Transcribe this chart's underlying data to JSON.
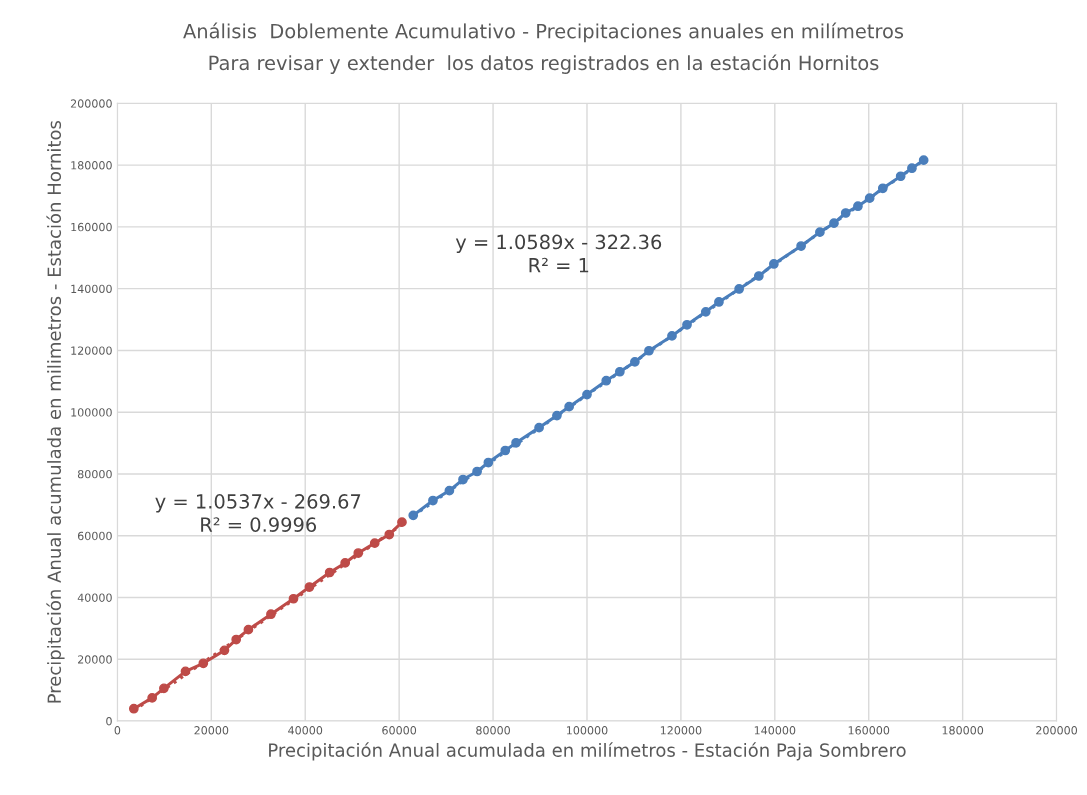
{
  "chart_data": {
    "type": "line",
    "title": "Análisis  Doblemente Acumulativo - Precipitaciones anuales en milímetros",
    "subtitle": "Para revisar y extender  los datos registrados en la estación Hornitos",
    "xlabel": "Precipitación Anual acumulada en milímetros - Estación Paja Sombrero",
    "ylabel": "Precipitación Anual acumulada en milimetros - Estación Hornitos",
    "xlim": [
      0,
      200000
    ],
    "ylim": [
      0,
      200000
    ],
    "xticks": [
      0,
      20000,
      40000,
      60000,
      80000,
      100000,
      120000,
      140000,
      160000,
      180000,
      200000
    ],
    "yticks": [
      0,
      20000,
      40000,
      60000,
      80000,
      100000,
      120000,
      140000,
      160000,
      180000,
      200000
    ],
    "grid": true,
    "legend": false,
    "marker": "circle",
    "line_style": "solid",
    "annotations": [
      "y = 1.0589x - 322.36\nR² = 1",
      "y = 1.0537x - 269.67\nR² = 0.9996"
    ],
    "series": [
      {
        "color": "#be4b48",
        "x": [
          3500,
          7400,
          9900,
          14500,
          18300,
          22800,
          25300,
          27900,
          32700,
          37500,
          40900,
          45200,
          48500,
          51300,
          54800,
          57900,
          60600
        ],
        "values": [
          4000,
          7500,
          10600,
          16100,
          18700,
          22900,
          26400,
          29600,
          34600,
          39600,
          43400,
          48100,
          51200,
          54400,
          57600,
          60400,
          64400
        ]
      },
      {
        "color": "#4a7ebb",
        "x": [
          63000,
          67200,
          70700,
          73600,
          76600,
          79000,
          82600,
          84900,
          89800,
          93600,
          96200,
          100000,
          104100,
          107000,
          110200,
          113200,
          118100,
          121300,
          125300,
          128100,
          132400,
          136600,
          139800,
          145600,
          149600,
          152600,
          155100,
          157700,
          160200,
          163000,
          166800,
          169200,
          171700
        ],
        "values": [
          66600,
          71400,
          74600,
          78200,
          80800,
          83700,
          87600,
          90100,
          95000,
          98900,
          101800,
          105700,
          110200,
          113100,
          116300,
          119900,
          124700,
          128300,
          132500,
          135700,
          139900,
          144100,
          148000,
          153800,
          158300,
          161200,
          164500,
          166700,
          169300,
          172500,
          176400,
          179000,
          181600
        ]
      },
      {
        "type": "line",
        "color": "#be4b48",
        "marker": "none",
        "line_style": "dotted",
        "x": [
          3500,
          60600
        ],
        "values": [
          3400,
          63600
        ]
      },
      {
        "type": "line",
        "color": "#4a7ebb",
        "marker": "none",
        "line_style": "dotted",
        "x": [
          63000,
          171700
        ],
        "values": [
          66400,
          181500
        ]
      }
    ]
  }
}
